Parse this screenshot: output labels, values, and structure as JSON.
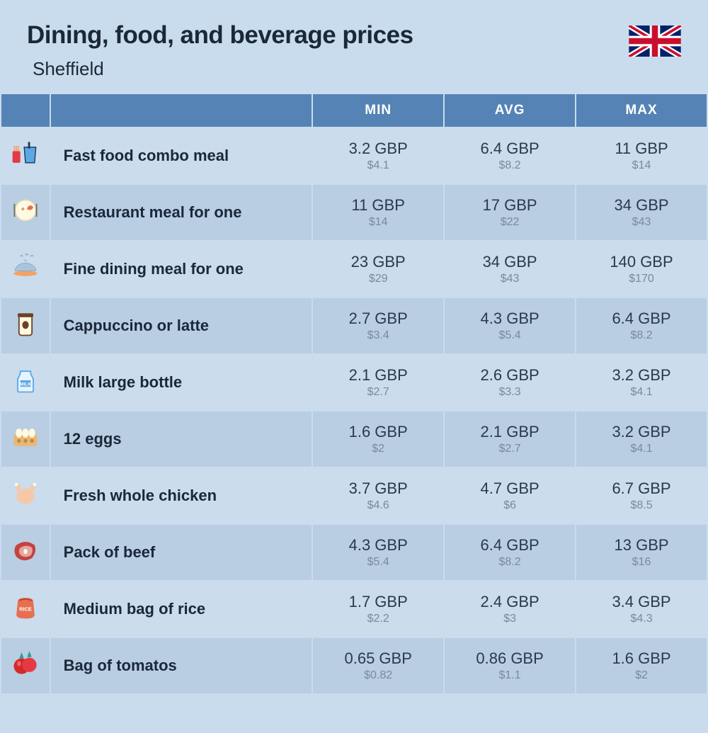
{
  "header": {
    "title": "Dining, food, and beverage prices",
    "subtitle": "Sheffield"
  },
  "table": {
    "headers": {
      "min": "MIN",
      "avg": "AVG",
      "max": "MAX"
    },
    "header_bg": "#5583b5",
    "header_fg": "#ffffff",
    "row_odd_bg": "#cbdced",
    "row_even_bg": "#b9cde3",
    "primary_color": "#2a3a4a",
    "secondary_color": "#7a8a9a",
    "rows": [
      {
        "icon": "fast-food",
        "name": "Fast food combo meal",
        "min_p": "3.2 GBP",
        "min_s": "$4.1",
        "avg_p": "6.4 GBP",
        "avg_s": "$8.2",
        "max_p": "11 GBP",
        "max_s": "$14"
      },
      {
        "icon": "restaurant",
        "name": "Restaurant meal for one",
        "min_p": "11 GBP",
        "min_s": "$14",
        "avg_p": "17 GBP",
        "avg_s": "$22",
        "max_p": "34 GBP",
        "max_s": "$43"
      },
      {
        "icon": "fine-dining",
        "name": "Fine dining meal for one",
        "min_p": "23 GBP",
        "min_s": "$29",
        "avg_p": "34 GBP",
        "avg_s": "$43",
        "max_p": "140 GBP",
        "max_s": "$170"
      },
      {
        "icon": "coffee",
        "name": "Cappuccino or latte",
        "min_p": "2.7 GBP",
        "min_s": "$3.4",
        "avg_p": "4.3 GBP",
        "avg_s": "$5.4",
        "max_p": "6.4 GBP",
        "max_s": "$8.2"
      },
      {
        "icon": "milk",
        "name": "Milk large bottle",
        "min_p": "2.1 GBP",
        "min_s": "$2.7",
        "avg_p": "2.6 GBP",
        "avg_s": "$3.3",
        "max_p": "3.2 GBP",
        "max_s": "$4.1"
      },
      {
        "icon": "eggs",
        "name": "12 eggs",
        "min_p": "1.6 GBP",
        "min_s": "$2",
        "avg_p": "2.1 GBP",
        "avg_s": "$2.7",
        "max_p": "3.2 GBP",
        "max_s": "$4.1"
      },
      {
        "icon": "chicken",
        "name": "Fresh whole chicken",
        "min_p": "3.7 GBP",
        "min_s": "$4.6",
        "avg_p": "4.7 GBP",
        "avg_s": "$6",
        "max_p": "6.7 GBP",
        "max_s": "$8.5"
      },
      {
        "icon": "beef",
        "name": "Pack of beef",
        "min_p": "4.3 GBP",
        "min_s": "$5.4",
        "avg_p": "6.4 GBP",
        "avg_s": "$8.2",
        "max_p": "13 GBP",
        "max_s": "$16"
      },
      {
        "icon": "rice",
        "name": "Medium bag of rice",
        "min_p": "1.7 GBP",
        "min_s": "$2.2",
        "avg_p": "2.4 GBP",
        "avg_s": "$3",
        "max_p": "3.4 GBP",
        "max_s": "$4.3"
      },
      {
        "icon": "tomatos",
        "name": "Bag of tomatos",
        "min_p": "0.65 GBP",
        "min_s": "$0.82",
        "avg_p": "0.86 GBP",
        "avg_s": "$1.1",
        "max_p": "1.6 GBP",
        "max_s": "$2"
      }
    ]
  }
}
